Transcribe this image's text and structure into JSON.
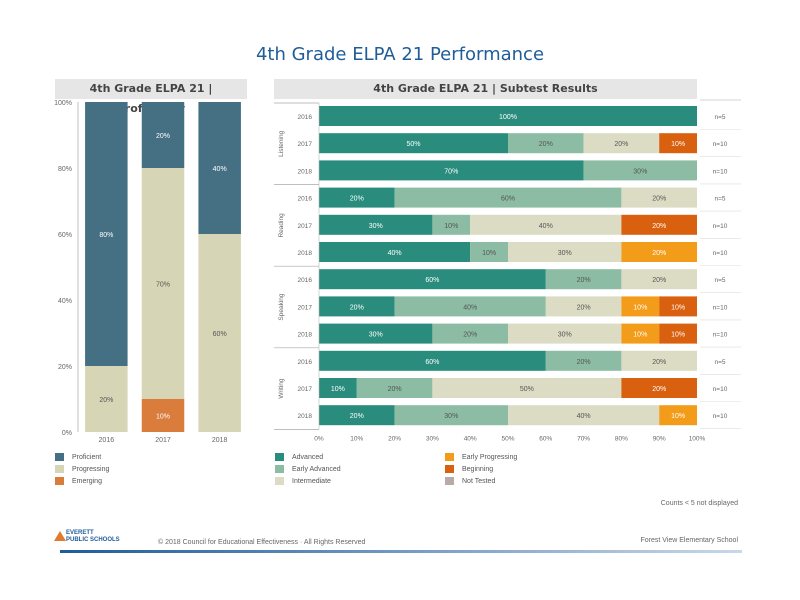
{
  "title": "4th Grade ELPA 21 Performance",
  "left_panel_title": "4th Grade ELPA 21 | Proficiency",
  "right_panel_title": "4th Grade ELPA 21 | Subtest Results",
  "counts_note": "Counts < 5 not displayed",
  "copyright": "© 2018 Council for Educational Effectiveness · All Rights Reserved",
  "school": "Forest View Elementary School",
  "logo": {
    "line1": "EVERETT",
    "line2": "PUBLIC SCHOOLS"
  },
  "colors": {
    "proficient": "#456f83",
    "progressing": "#d6d6b6",
    "emerging": "#d97c3c",
    "advanced": "#2a8c7d",
    "early_advanced": "#8cbca4",
    "intermediate": "#dcdcc4",
    "early_progressing": "#f39c1a",
    "beginning": "#d9600e",
    "not_tested": "#b8aaa8",
    "header_bg": "#e6e6e6",
    "title": "#1f5c99"
  },
  "chart_data": [
    {
      "type": "bar",
      "stacked": true,
      "title": "4th Grade ELPA 21 | Proficiency",
      "categories": [
        "2016",
        "2017",
        "2018"
      ],
      "ylim": [
        0,
        100
      ],
      "yticks": [
        "0%",
        "20%",
        "40%",
        "60%",
        "80%",
        "100%"
      ],
      "series": [
        {
          "name": "Emerging",
          "color": "#d97c3c",
          "values": [
            0,
            10,
            0
          ],
          "labels": [
            "",
            "10%",
            ""
          ]
        },
        {
          "name": "Progressing",
          "color": "#d6d6b6",
          "values": [
            20,
            70,
            60
          ],
          "labels": [
            "20%",
            "70%",
            "60%"
          ]
        },
        {
          "name": "Proficient",
          "color": "#456f83",
          "values": [
            80,
            20,
            40
          ],
          "labels": [
            "80%",
            "20%",
            "40%"
          ]
        }
      ],
      "legend": [
        "Proficient",
        "Progressing",
        "Emerging"
      ],
      "legend_position": "bottom-left"
    },
    {
      "type": "bar",
      "orientation": "horizontal",
      "stacked": true,
      "title": "4th Grade ELPA 21 | Subtest Results",
      "xlim": [
        0,
        100
      ],
      "xticks": [
        "0%",
        "10%",
        "20%",
        "30%",
        "40%",
        "50%",
        "60%",
        "70%",
        "80%",
        "90%",
        "100%"
      ],
      "level_order": [
        "Advanced",
        "Early Advanced",
        "Intermediate",
        "Early Progressing",
        "Beginning",
        "Not Tested"
      ],
      "legend": [
        "Advanced",
        "Early Advanced",
        "Intermediate",
        "Early Progressing",
        "Beginning",
        "Not Tested"
      ],
      "legend_position": "bottom",
      "groups": [
        {
          "name": "Listening",
          "rows": [
            {
              "year": "2016",
              "n": "n=5",
              "values": [
                100,
                0,
                0,
                0,
                0,
                0
              ]
            },
            {
              "year": "2017",
              "n": "n=10",
              "values": [
                50,
                20,
                20,
                0,
                10,
                0
              ]
            },
            {
              "year": "2018",
              "n": "n=10",
              "values": [
                70,
                30,
                0,
                0,
                0,
                0
              ]
            }
          ]
        },
        {
          "name": "Reading",
          "rows": [
            {
              "year": "2016",
              "n": "n=5",
              "values": [
                20,
                60,
                20,
                0,
                0,
                0
              ]
            },
            {
              "year": "2017",
              "n": "n=10",
              "values": [
                30,
                10,
                40,
                0,
                20,
                0
              ]
            },
            {
              "year": "2018",
              "n": "n=10",
              "values": [
                40,
                10,
                30,
                20,
                0,
                0
              ]
            }
          ]
        },
        {
          "name": "Speaking",
          "rows": [
            {
              "year": "2016",
              "n": "n=5",
              "values": [
                60,
                20,
                20,
                0,
                0,
                0
              ]
            },
            {
              "year": "2017",
              "n": "n=10",
              "values": [
                20,
                40,
                20,
                10,
                10,
                0
              ]
            },
            {
              "year": "2018",
              "n": "n=10",
              "values": [
                30,
                20,
                30,
                10,
                10,
                0
              ]
            }
          ]
        },
        {
          "name": "Writing",
          "rows": [
            {
              "year": "2016",
              "n": "n=5",
              "values": [
                60,
                20,
                20,
                0,
                0,
                0
              ]
            },
            {
              "year": "2017",
              "n": "n=10",
              "values": [
                10,
                20,
                50,
                0,
                20,
                0
              ]
            },
            {
              "year": "2018",
              "n": "n=10",
              "values": [
                20,
                30,
                40,
                10,
                0,
                0
              ]
            }
          ]
        }
      ]
    }
  ]
}
